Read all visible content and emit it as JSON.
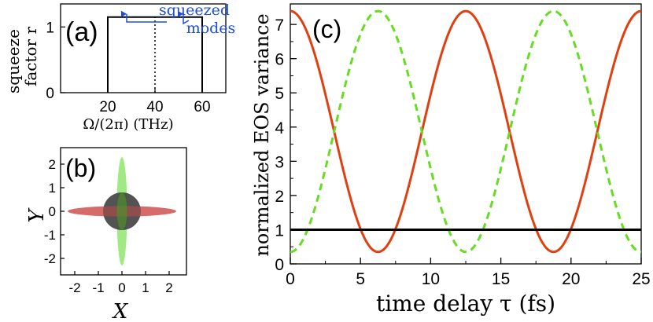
{
  "chart_data": [
    {
      "panel": "(a)",
      "type": "line",
      "ylabel_line1": "squeeze",
      "ylabel_line2": "factor r",
      "xlabel": "Ω/(2π) (THz)",
      "xticks": [
        "20",
        "40",
        "60"
      ],
      "yticks": [
        "0",
        "1"
      ],
      "xlim": [
        0,
        70
      ],
      "ylim": [
        0,
        1.35
      ],
      "series": [
        {
          "x": [
            20,
            20,
            60,
            60
          ],
          "y": [
            0,
            1.15,
            1.15,
            0
          ],
          "style": "solid",
          "color": "#000000"
        },
        {
          "x": [
            40,
            40
          ],
          "y": [
            0,
            1.15
          ],
          "style": "dotted",
          "color": "#000000"
        }
      ],
      "annotation": {
        "text_line1": "squeezed",
        "text_line2": "modes",
        "color": "#1f4fd6",
        "arrow_targets_x": [
          28,
          52
        ]
      }
    },
    {
      "panel": "(b)",
      "type": "scatter",
      "xlabel": "X",
      "ylabel": "Y",
      "xticks": [
        "-2",
        "-1",
        "0",
        "1",
        "2"
      ],
      "yticks": [
        "-2",
        "-1",
        "0",
        "1",
        "2"
      ],
      "xlim": [
        -2.6,
        2.6
      ],
      "ylim": [
        -2.4,
        2.4
      ],
      "shapes": [
        {
          "kind": "ellipse",
          "cx": 0,
          "cy": 0,
          "rx": 2.3,
          "ry": 0.22,
          "color": "#f08080"
        },
        {
          "kind": "ellipse",
          "cx": 0,
          "cy": 0,
          "rx": 0.22,
          "ry": 2.3,
          "color": "#7fe35a"
        },
        {
          "kind": "circle",
          "cx": 0,
          "cy": 0,
          "r": 0.8,
          "color": "#4a4a4a"
        }
      ]
    },
    {
      "panel": "(c)",
      "type": "line",
      "xlabel": "time delay τ (fs)",
      "ylabel": "normalized EOS variance",
      "xticks": [
        "0",
        "5",
        "10",
        "15",
        "20",
        "25"
      ],
      "yticks": [
        "0",
        "1",
        "2",
        "3",
        "4",
        "5",
        "6",
        "7"
      ],
      "xlim": [
        0,
        25
      ],
      "ylim": [
        0,
        7.6
      ],
      "series": [
        {
          "style": "solid",
          "color": "#e04010",
          "mean": 3.87,
          "amplitude": 3.52,
          "period": 12.5,
          "phase_shift": 0
        },
        {
          "style": "dashed",
          "color": "#66dd22",
          "mean": 3.87,
          "amplitude": -3.52,
          "period": 12.5,
          "phase_shift": 0
        },
        {
          "style": "solid",
          "color": "#000000",
          "constant": 1.0
        }
      ]
    }
  ]
}
